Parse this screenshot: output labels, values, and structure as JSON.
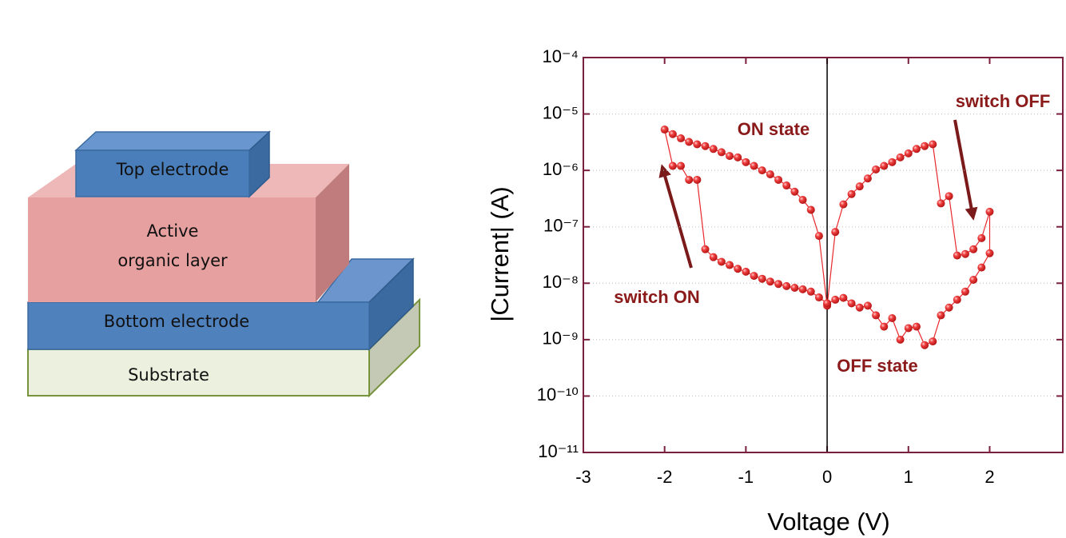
{
  "diagram": {
    "layers": [
      {
        "label": [
          "Top electrode"
        ]
      },
      {
        "label": [
          "Active",
          "organic layer"
        ]
      },
      {
        "label": [
          "Bottom electrode"
        ]
      },
      {
        "label": [
          "Substrate"
        ]
      }
    ]
  },
  "chart_data": {
    "type": "line",
    "xlabel": "Voltage (V)",
    "ylabel": "|Current| (A)",
    "yscale": "log",
    "grid": true,
    "color": "#e8282c",
    "frame_color": "#7b1f3f",
    "annotations": [
      "ON state",
      "switch OFF",
      "switch ON",
      "OFF state"
    ],
    "xlim": [
      -3,
      2.9
    ],
    "xticks": [
      -3,
      -2,
      -1,
      0,
      1,
      2
    ],
    "ylim": [
      1e-11,
      0.0001
    ],
    "yticks": [
      {
        "value": 1e-11,
        "label": "10⁻¹¹"
      },
      {
        "value": 1e-10,
        "label": "10⁻¹⁰"
      },
      {
        "value": 1e-09,
        "label": "10⁻⁹"
      },
      {
        "value": 1e-08,
        "label": "10⁻⁸"
      },
      {
        "value": 1e-07,
        "label": "10⁻⁷"
      },
      {
        "value": 1e-06,
        "label": "10⁻⁶"
      },
      {
        "value": 1e-05,
        "label": "10⁻⁵"
      },
      {
        "value": 0.0001,
        "label": "10⁻⁴"
      }
    ],
    "x": [
      0,
      0.1,
      0.2,
      0.3,
      0.4,
      0.5,
      0.6,
      0.7,
      0.8,
      0.9,
      1.0,
      1.1,
      1.2,
      1.3,
      1.4,
      1.5,
      1.6,
      1.7,
      1.8,
      1.9,
      2.0,
      2.0,
      1.9,
      1.8,
      1.7,
      1.6,
      1.5,
      1.4,
      1.3,
      1.2,
      1.1,
      1.0,
      0.9,
      0.8,
      0.7,
      0.6,
      0.5,
      0.4,
      0.3,
      0.2,
      0.1,
      0,
      -0.1,
      -0.2,
      -0.3,
      -0.4,
      -0.5,
      -0.6,
      -0.7,
      -0.8,
      -0.9,
      -1.0,
      -1.1,
      -1.2,
      -1.3,
      -1.4,
      -1.5,
      -1.6,
      -1.7,
      -1.8,
      -1.9,
      -2.0,
      -1.9,
      -1.8,
      -1.7,
      -1.6,
      -1.5,
      -1.4,
      -1.3,
      -1.2,
      -1.1,
      -1.0,
      -0.9,
      -0.8,
      -0.7,
      -0.6,
      -0.5,
      -0.4,
      -0.3,
      -0.2,
      -0.1,
      0
    ],
    "values": [
      4.4e-09,
      5.1e-09,
      5.5e-09,
      4.4e-09,
      3.7e-09,
      4e-09,
      2.7e-09,
      1.7e-09,
      2.4e-09,
      1e-09,
      1.6e-09,
      1.7e-09,
      8e-10,
      9.3e-10,
      2.7e-09,
      3.7e-09,
      5.1e-09,
      7.1e-09,
      1.15e-08,
      1.9e-08,
      3.4e-08,
      1.85e-07,
      6.3e-08,
      4e-08,
      3.3e-08,
      3.1e-08,
      3.5e-07,
      2.6e-07,
      2.9e-06,
      2.7e-06,
      2.4e-06,
      2e-06,
      1.7e-06,
      1.4e-06,
      1.2e-06,
      1.04e-06,
      7.2e-07,
      5.2e-07,
      3.8e-07,
      2.5e-07,
      8.1e-08,
      4e-09,
      6.9e-08,
      2e-07,
      3e-07,
      4.2e-07,
      5.4e-07,
      6.8e-07,
      8.5e-07,
      1e-06,
      1.2e-06,
      1.4e-06,
      1.7e-06,
      1.8e-06,
      2.1e-06,
      2.4e-06,
      2.7e-06,
      2.9e-06,
      3.2e-06,
      3.7e-06,
      4.4e-06,
      5.3e-06,
      1.2e-06,
      1.2e-06,
      6.8e-07,
      6.8e-07,
      4e-08,
      2.9e-08,
      2.4e-08,
      2.1e-08,
      1.8e-08,
      1.6e-08,
      1.35e-08,
      1.2e-08,
      1.07e-08,
      9.7e-09,
      8.9e-09,
      8.3e-09,
      7.8e-09,
      7.1e-09,
      5.6e-09,
      4.4e-09
    ]
  }
}
